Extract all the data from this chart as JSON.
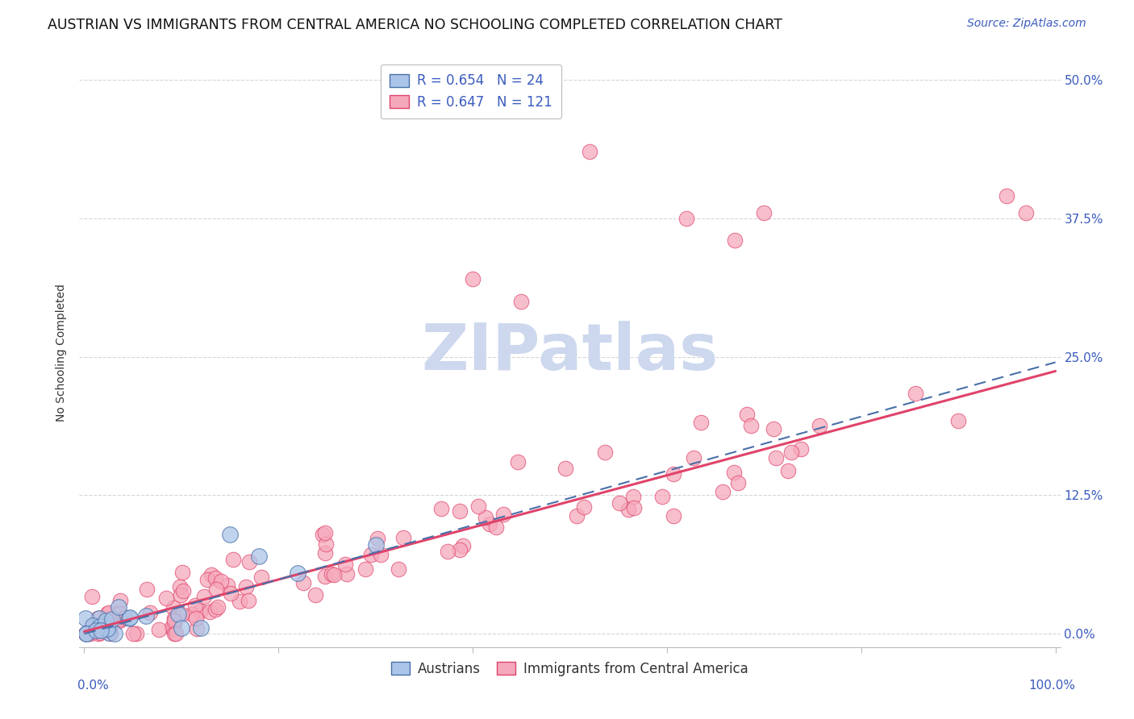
{
  "title": "AUSTRIAN VS IMMIGRANTS FROM CENTRAL AMERICA NO SCHOOLING COMPLETED CORRELATION CHART",
  "source": "Source: ZipAtlas.com",
  "ylabel": "No Schooling Completed",
  "ytick_labels": [
    "0.0%",
    "12.5%",
    "25.0%",
    "37.5%",
    "50.0%"
  ],
  "ytick_values": [
    0.0,
    0.125,
    0.25,
    0.375,
    0.5
  ],
  "xlim": [
    0.0,
    1.0
  ],
  "ylim": [
    -0.01,
    0.52
  ],
  "austrians_color": "#aac5e8",
  "immigrants_color": "#f5a8bb",
  "line_austrians_color": "#4a6fa8",
  "line_immigrants_color": "#e0436a",
  "background_color": "#ffffff",
  "watermark": "ZIPatlas",
  "watermark_color": "#cdd8ee",
  "grid_color": "#cccccc",
  "title_fontsize": 12.5,
  "axis_label_fontsize": 10,
  "tick_fontsize": 11,
  "legend_fontsize": 12,
  "source_fontsize": 10,
  "legend1_R1": "R = 0.654",
  "legend1_N1": "N = 24",
  "legend1_R2": "R = 0.647",
  "legend1_N2": "N = 121",
  "label_austrians": "Austrians",
  "label_immigrants": "Immigrants from Central America"
}
